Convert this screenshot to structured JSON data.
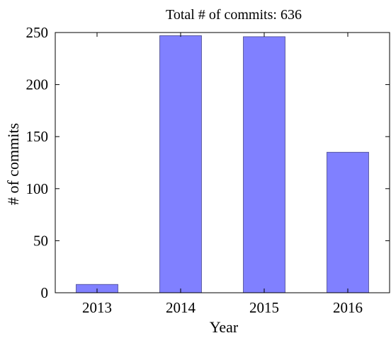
{
  "chart_data": {
    "type": "bar",
    "title": "Total # of commits: 636",
    "xlabel": "Year",
    "ylabel": "# of commits",
    "categories": [
      "2013",
      "2014",
      "2015",
      "2016"
    ],
    "values": [
      8,
      247,
      246,
      135
    ],
    "ylim": [
      0,
      250
    ],
    "yticks": [
      0,
      50,
      100,
      150,
      200,
      250
    ],
    "grid": false,
    "legend": "none",
    "bar_color": "#8080ff"
  }
}
